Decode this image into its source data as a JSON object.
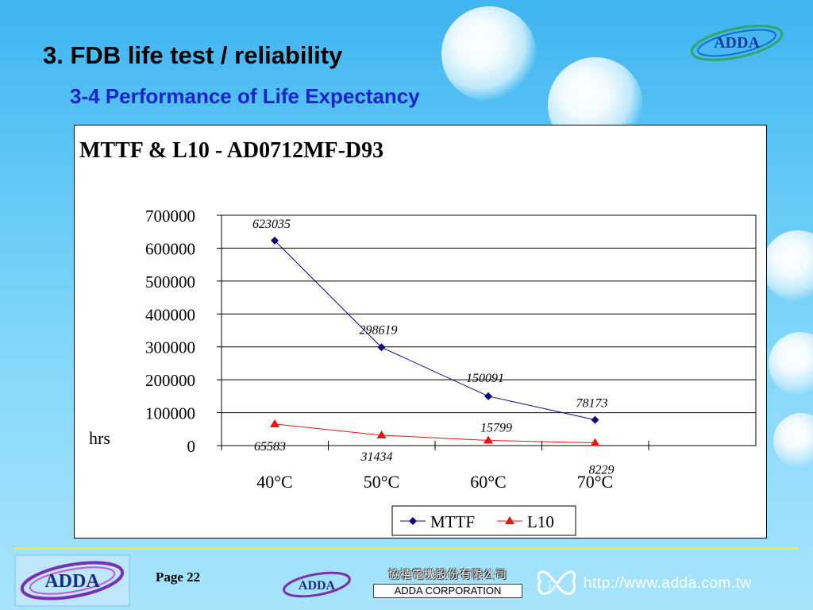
{
  "slide": {
    "title": "3. FDB life test / reliability",
    "subtitle": "3-4 Performance of Life Expectancy"
  },
  "logo_text": "ADDA",
  "footer": {
    "page": "Page 22",
    "company_zh": "協禧電機股份有限公司",
    "company_en": "ADDA CORPORATION",
    "url": "http://www.adda.com.tw"
  },
  "colors": {
    "mttf": "#0a0a7a",
    "l10": "#ee1111",
    "title_blue": "#1a24c8",
    "footer_line": "#e8e84a"
  },
  "chart_data": {
    "type": "line",
    "title": "MTTF & L10 - AD0712MF-D93",
    "ylabel": "hrs",
    "xlabel": "",
    "categories": [
      "40°C",
      "50°C",
      "60°C",
      "70°C"
    ],
    "ylim": [
      0,
      700000
    ],
    "yticks": [
      "700000",
      "600000",
      "500000",
      "400000",
      "300000",
      "200000",
      "100000",
      "0"
    ],
    "grid": true,
    "legend": "bottom-right",
    "series": [
      {
        "name": "MTTF",
        "values": [
          623035,
          298619,
          150091,
          78173
        ],
        "labels": [
          "623035",
          "298619",
          "150091",
          "78173"
        ],
        "marker": "diamond",
        "color": "#0a0a7a"
      },
      {
        "name": "L10",
        "values": [
          65583,
          31434,
          15799,
          8229
        ],
        "labels": [
          "65583",
          "31434",
          "15799",
          "8229"
        ],
        "marker": "triangle",
        "color": "#ee1111"
      }
    ]
  }
}
